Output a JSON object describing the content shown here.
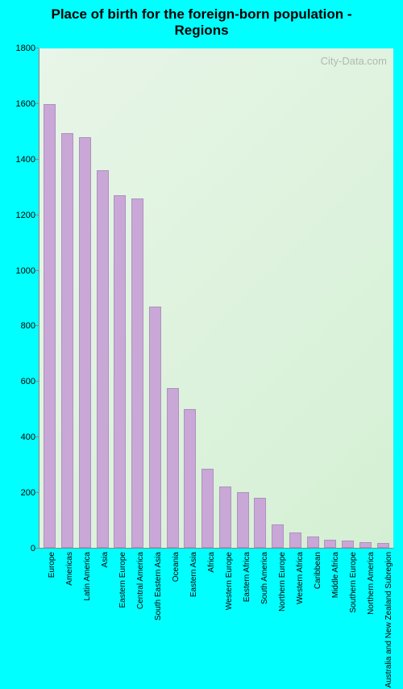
{
  "chart": {
    "type": "bar",
    "title": "Place of birth for the foreign-born population - Regions",
    "title_fontsize": 17,
    "title_fontweight": "bold",
    "title_color": "#000000",
    "watermark": "City-Data.com",
    "watermark_color": "#808080",
    "background_color": "#00ffff",
    "plot_background_gradient": [
      "#e8f5e8",
      "#d4f0d4"
    ],
    "bar_color": "#c9a8d8",
    "bar_border_color": "#b090c0",
    "bar_width": 0.68,
    "axis_color": "#888888",
    "ylim": [
      0,
      1800
    ],
    "ytick_step": 200,
    "yticks": [
      0,
      200,
      400,
      600,
      800,
      1000,
      1200,
      1400,
      1600,
      1800
    ],
    "ytick_fontsize": 11,
    "xtick_fontsize": 10,
    "xtick_rotation": -90,
    "categories": [
      "Europe",
      "Americas",
      "Latin America",
      "Asia",
      "Eastern Europe",
      "Central America",
      "South Eastern Asia",
      "Oceania",
      "Eastern Asia",
      "Africa",
      "Western Europe",
      "Eastern Africa",
      "South America",
      "Northern Europe",
      "Western Africa",
      "Caribbean",
      "Middle Africa",
      "Southern Europe",
      "Northern America",
      "Australia and New Zealand Subregion"
    ],
    "values": [
      1600,
      1495,
      1480,
      1360,
      1270,
      1260,
      870,
      575,
      500,
      285,
      220,
      200,
      180,
      85,
      55,
      40,
      30,
      25,
      20,
      18
    ]
  }
}
